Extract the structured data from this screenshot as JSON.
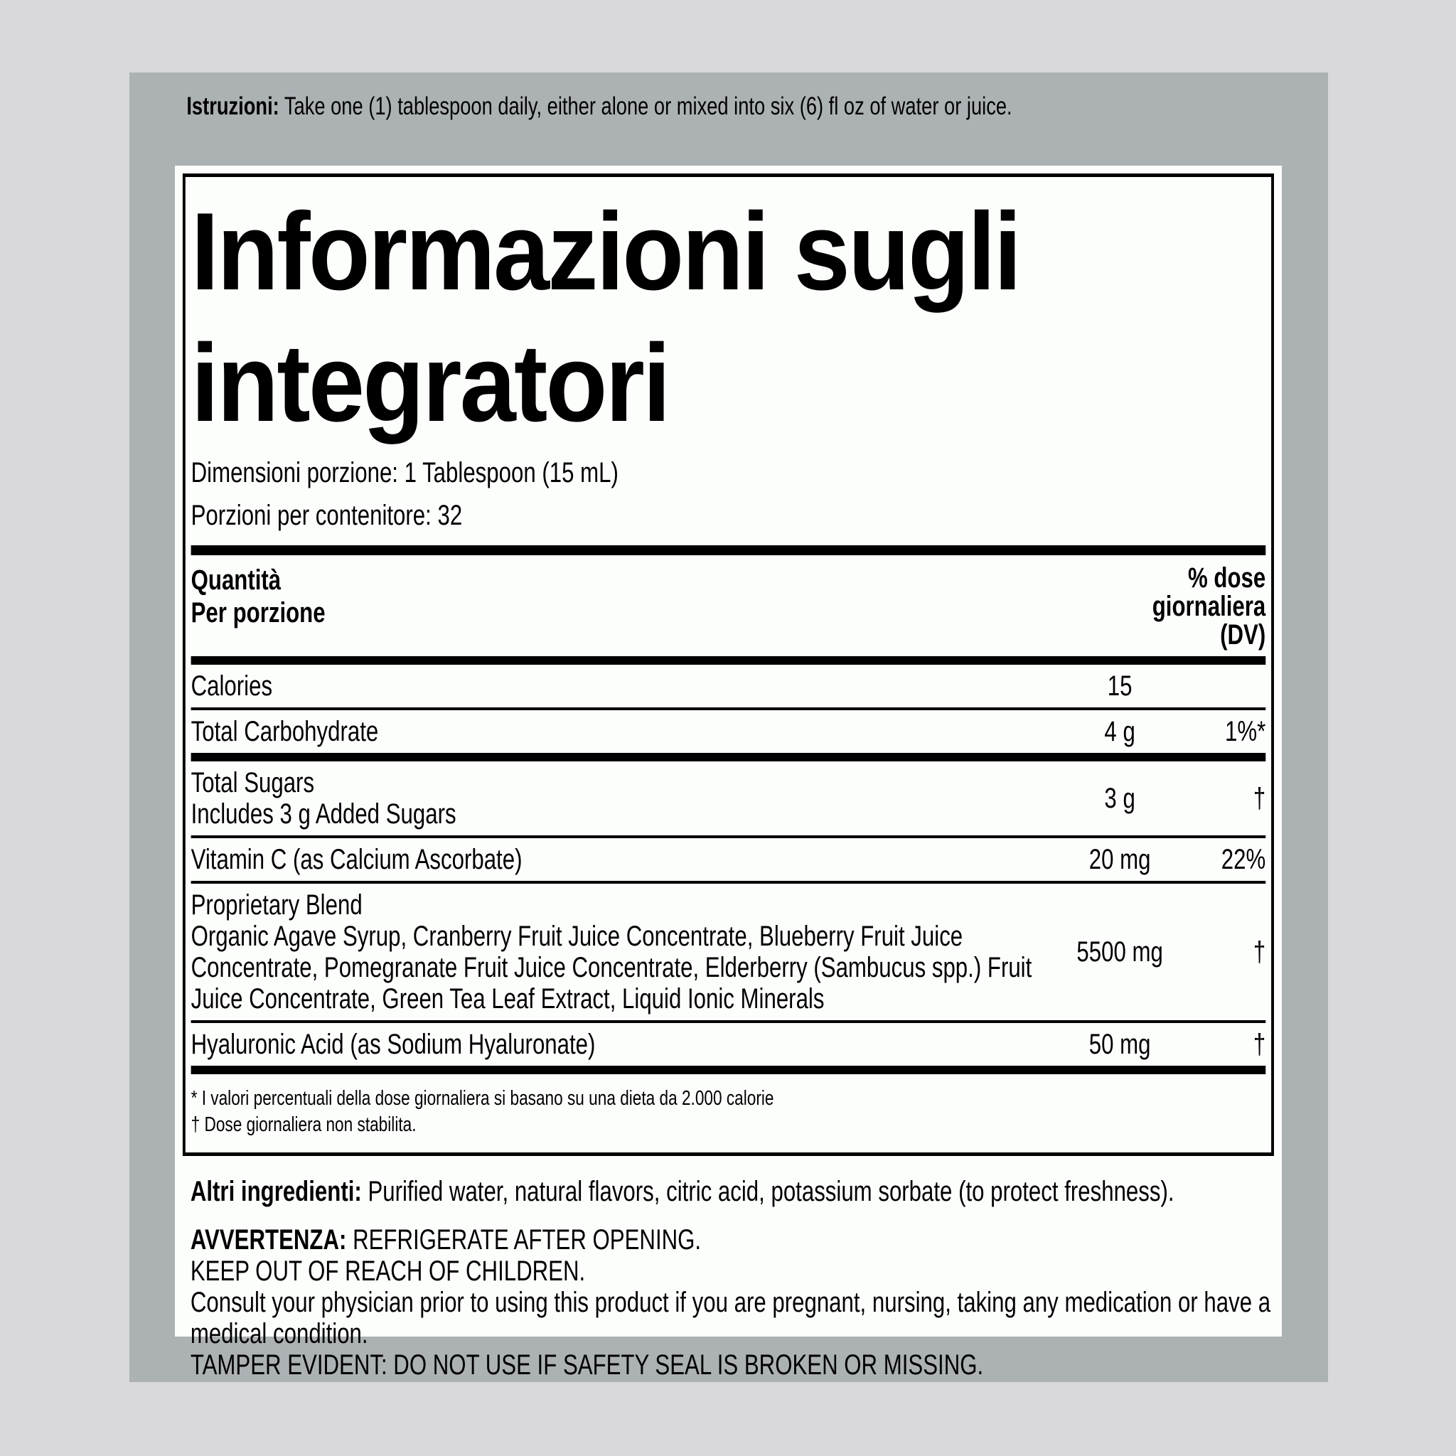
{
  "colors": {
    "page_bg": "#d9d8db",
    "panel_grey": "#acb1b4",
    "label_bg": "#fcfefc",
    "text": "#000000"
  },
  "instructions": {
    "lead": "Istruzioni:",
    "text": "Take one (1) tablespoon daily, either alone or mixed into six (6) fl oz of water or juice."
  },
  "panel": {
    "title_line1": "Informazioni sugli",
    "title_line2": "integratori",
    "serving_size": "Dimensioni porzione: 1 Tablespoon (15 mL)",
    "servings_per_container": "Porzioni per contenitore: 32",
    "header": {
      "left_line1": "Quantità",
      "left_line2": "Per porzione",
      "right_line1": "% dose",
      "right_line2": "giornaliera",
      "right_line3": "(DV)"
    },
    "rows": [
      {
        "name_lines": [
          "Calories"
        ],
        "amount": "15",
        "dv": "",
        "sep": "thin"
      },
      {
        "name_lines": [
          "Total Carbohydrate"
        ],
        "amount": "4 g",
        "dv": "1%*",
        "sep": "thick"
      },
      {
        "name_lines": [
          "Total Sugars",
          "Includes 3 g Added Sugars"
        ],
        "amount": "3 g",
        "dv": "†",
        "sep": "thin"
      },
      {
        "name_lines": [
          "Vitamin C (as Calcium Ascorbate)"
        ],
        "amount": "20 mg",
        "dv": "22%",
        "sep": "thin"
      },
      {
        "name_lines": [
          "Proprietary Blend",
          "Organic Agave Syrup, Cranberry Fruit Juice Concentrate, Blueberry Fruit Juice Concentrate, Pomegranate Fruit Juice Concentrate, Elderberry (Sambucus spp.) Fruit Juice Concentrate, Green Tea Leaf Extract, Liquid Ionic Minerals"
        ],
        "amount": "5500 mg",
        "dv": "†",
        "sep": "thin"
      },
      {
        "name_lines": [
          "Hyaluronic Acid (as Sodium Hyaluronate)"
        ],
        "amount": "50 mg",
        "dv": "†",
        "sep": "thick"
      }
    ],
    "footnotes": [
      "* I valori percentuali della dose giornaliera si basano su una dieta da 2.000 calorie",
      "† Dose giornaliera non stabilita."
    ]
  },
  "other_ingredients": {
    "lead": "Altri ingredienti:",
    "text": "Purified water, natural flavors, citric acid, potassium sorbate (to protect freshness)."
  },
  "warnings": [
    {
      "lead": "AVVERTENZA:",
      "text": "REFRIGERATE AFTER OPENING."
    },
    {
      "lead": "",
      "text": "KEEP OUT OF REACH OF CHILDREN."
    },
    {
      "lead": "",
      "text": "Consult your physician prior to using this product if you are pregnant, nursing, taking any medication or have a medical condition."
    },
    {
      "lead": "",
      "text": "TAMPER EVIDENT: DO NOT USE IF SAFETY SEAL IS BROKEN OR MISSING."
    }
  ]
}
